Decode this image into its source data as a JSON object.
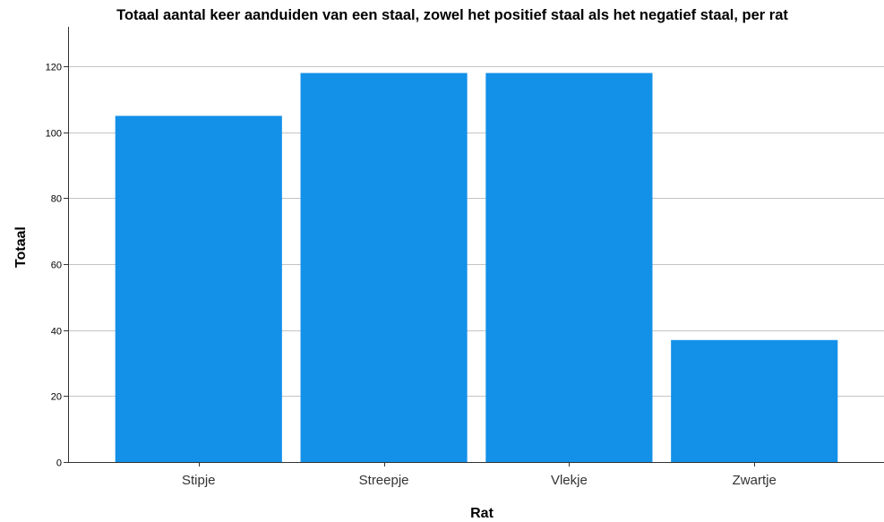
{
  "chart_data": {
    "type": "bar",
    "title": "Totaal aantal keer aanduiden van een staal, zowel het positief staal als het negatief staal, per rat",
    "xlabel": "Rat",
    "ylabel": "Totaal",
    "categories": [
      "Stipje",
      "Streepje",
      "Vlekje",
      "Zwartje"
    ],
    "values": [
      105,
      118,
      118,
      37
    ],
    "ylim": [
      0,
      132
    ],
    "yticks": [
      0,
      20,
      40,
      60,
      80,
      100,
      120
    ],
    "grid": true,
    "bar_color": "#1390e8"
  }
}
